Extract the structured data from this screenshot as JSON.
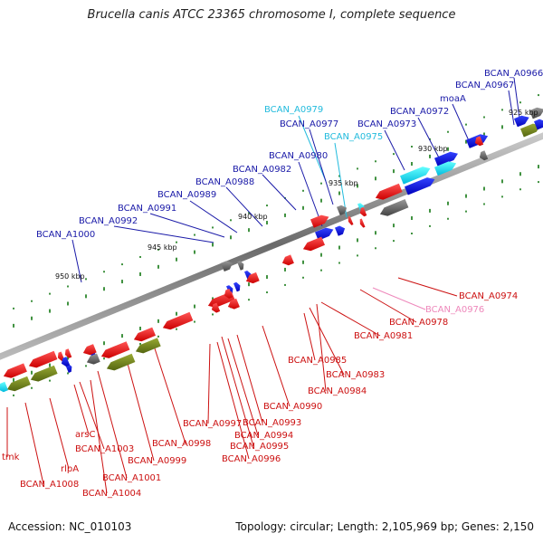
{
  "title": "Brucella canis ATCC 23365 chromosome I, complete sequence",
  "footer": {
    "accession": "Accession: NC_010103",
    "summary": "Topology: circular; Length: 2,105,969 bp; Genes: 2,150"
  },
  "colors": {
    "forward_label": "#1a1aa8",
    "forward_label_light": "#22bbdd",
    "reverse_label": "#cc1111",
    "reverse_label_light": "#ee88bb",
    "backbone": "#8a8a8a",
    "tick": "#117711"
  },
  "kbp_markers": [
    "925 kbp",
    "930 kbp",
    "935 kbp",
    "940 kbp",
    "945 kbp",
    "950 kbp"
  ],
  "forward_labels": [
    {
      "text": "BCAN_A0966",
      "tone": "dark"
    },
    {
      "text": "BCAN_A0967",
      "tone": "dark"
    },
    {
      "text": "moaA",
      "tone": "dark"
    },
    {
      "text": "BCAN_A0972",
      "tone": "dark"
    },
    {
      "text": "BCAN_A0973",
      "tone": "dark"
    },
    {
      "text": "BCAN_A0979",
      "tone": "light"
    },
    {
      "text": "BCAN_A0977",
      "tone": "dark"
    },
    {
      "text": "BCAN_A0975",
      "tone": "light"
    },
    {
      "text": "BCAN_A0980",
      "tone": "dark"
    },
    {
      "text": "BCAN_A0982",
      "tone": "dark"
    },
    {
      "text": "BCAN_A0988",
      "tone": "dark"
    },
    {
      "text": "BCAN_A0989",
      "tone": "dark"
    },
    {
      "text": "BCAN_A0991",
      "tone": "dark"
    },
    {
      "text": "BCAN_A0992",
      "tone": "dark"
    },
    {
      "text": "BCAN_A1000",
      "tone": "dark"
    }
  ],
  "reverse_labels": [
    {
      "text": "BCAN_A0974",
      "tone": "dark"
    },
    {
      "text": "BCAN_A0976",
      "tone": "light"
    },
    {
      "text": "BCAN_A0978",
      "tone": "dark"
    },
    {
      "text": "BCAN_A0981",
      "tone": "dark"
    },
    {
      "text": "BCAN_A0985",
      "tone": "dark"
    },
    {
      "text": "BCAN_A0983",
      "tone": "dark"
    },
    {
      "text": "BCAN_A0984",
      "tone": "dark"
    },
    {
      "text": "BCAN_A0990",
      "tone": "dark"
    },
    {
      "text": "BCAN_A0997",
      "tone": "dark"
    },
    {
      "text": "BCAN_A0993",
      "tone": "dark"
    },
    {
      "text": "BCAN_A0994",
      "tone": "dark"
    },
    {
      "text": "BCAN_A0995",
      "tone": "dark"
    },
    {
      "text": "BCAN_A0996",
      "tone": "dark"
    },
    {
      "text": "BCAN_A0998",
      "tone": "dark"
    },
    {
      "text": "BCAN_A0999",
      "tone": "dark"
    },
    {
      "text": "arsC",
      "tone": "dark"
    },
    {
      "text": "BCAN_A1003",
      "tone": "dark"
    },
    {
      "text": "BCAN_A1001",
      "tone": "dark"
    },
    {
      "text": "rlpA",
      "tone": "dark"
    },
    {
      "text": "BCAN_A1004",
      "tone": "dark"
    },
    {
      "text": "BCAN_A1008",
      "tone": "dark"
    },
    {
      "text": "tmk",
      "tone": "dark"
    }
  ]
}
